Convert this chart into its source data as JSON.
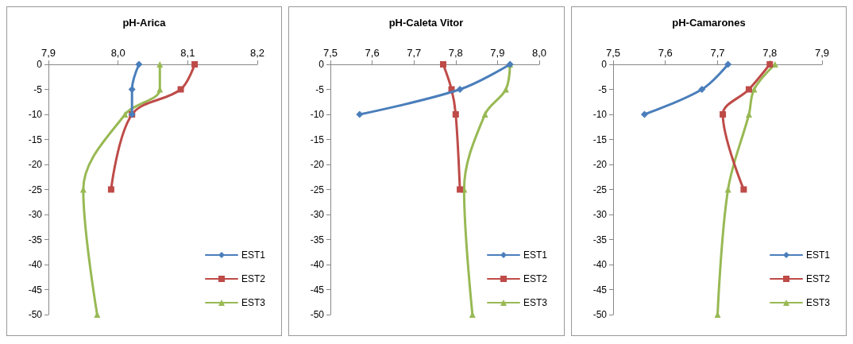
{
  "chart_data": [
    {
      "type": "line",
      "title": "pH-Arica",
      "xlim": [
        7.9,
        8.2
      ],
      "xticks": [
        {
          "value": 7.9,
          "label": "7,9"
        },
        {
          "value": 8.0,
          "label": "8,0"
        },
        {
          "value": 8.1,
          "label": "8,1"
        },
        {
          "value": 8.2,
          "label": "8,2"
        }
      ],
      "ylim": [
        -50,
        0
      ],
      "yticks": [
        0,
        -5,
        -10,
        -15,
        -20,
        -25,
        -30,
        -35,
        -40,
        -45,
        -50
      ],
      "grid": false,
      "legend": "bottom right",
      "series": [
        {
          "name": "EST1",
          "color": "#4a7ebb",
          "marker": "diamond",
          "x": [
            8.03,
            8.02,
            8.02
          ],
          "values": [
            0,
            -5,
            -10
          ]
        },
        {
          "name": "EST2",
          "color": "#be4b48",
          "marker": "square",
          "x": [
            8.11,
            8.09,
            8.02,
            7.99
          ],
          "values": [
            0,
            -5,
            -10,
            -25
          ]
        },
        {
          "name": "EST3",
          "color": "#98b954",
          "marker": "triangle",
          "x": [
            8.06,
            8.06,
            8.01,
            7.95,
            7.97
          ],
          "values": [
            0,
            -5,
            -10,
            -25,
            -50
          ]
        }
      ]
    },
    {
      "type": "line",
      "title": "pH-Caleta Vitor",
      "xlim": [
        7.5,
        8.0
      ],
      "xticks": [
        {
          "value": 7.5,
          "label": "7,5"
        },
        {
          "value": 7.6,
          "label": "7,6"
        },
        {
          "value": 7.7,
          "label": "7,7"
        },
        {
          "value": 7.8,
          "label": "7,8"
        },
        {
          "value": 7.9,
          "label": "7,9"
        },
        {
          "value": 8.0,
          "label": "8,0"
        }
      ],
      "ylim": [
        -50,
        0
      ],
      "yticks": [
        0,
        -5,
        -10,
        -15,
        -20,
        -25,
        -30,
        -35,
        -40,
        -45,
        -50
      ],
      "grid": false,
      "legend": "bottom right",
      "series": [
        {
          "name": "EST1",
          "color": "#4a7ebb",
          "marker": "diamond",
          "x": [
            7.93,
            7.81,
            7.57
          ],
          "values": [
            0,
            -5,
            -10
          ]
        },
        {
          "name": "EST2",
          "color": "#be4b48",
          "marker": "square",
          "x": [
            7.77,
            7.79,
            7.8,
            7.81
          ],
          "values": [
            0,
            -5,
            -10,
            -25
          ]
        },
        {
          "name": "EST3",
          "color": "#98b954",
          "marker": "triangle",
          "x": [
            7.93,
            7.92,
            7.87,
            7.82,
            7.84
          ],
          "values": [
            0,
            -5,
            -10,
            -25,
            -50
          ]
        }
      ]
    },
    {
      "type": "line",
      "title": "pH-Camarones",
      "xlim": [
        7.5,
        7.9
      ],
      "xticks": [
        {
          "value": 7.5,
          "label": "7,5"
        },
        {
          "value": 7.6,
          "label": "7,6"
        },
        {
          "value": 7.7,
          "label": "7,7"
        },
        {
          "value": 7.8,
          "label": "7,8"
        },
        {
          "value": 7.9,
          "label": "7,9"
        }
      ],
      "ylim": [
        -50,
        0
      ],
      "yticks": [
        0,
        -5,
        -10,
        -15,
        -20,
        -25,
        -30,
        -35,
        -40,
        -45,
        -50
      ],
      "grid": false,
      "legend": "bottom right",
      "series": [
        {
          "name": "EST1",
          "color": "#4a7ebb",
          "marker": "diamond",
          "x": [
            7.72,
            7.67,
            7.56
          ],
          "values": [
            0,
            -5,
            -10
          ]
        },
        {
          "name": "EST2",
          "color": "#be4b48",
          "marker": "square",
          "x": [
            7.8,
            7.76,
            7.71,
            7.75
          ],
          "values": [
            0,
            -5,
            -10,
            -25
          ]
        },
        {
          "name": "EST3",
          "color": "#98b954",
          "marker": "triangle",
          "x": [
            7.81,
            7.77,
            7.76,
            7.72,
            7.7
          ],
          "values": [
            0,
            -5,
            -10,
            -25,
            -50
          ]
        }
      ]
    }
  ]
}
